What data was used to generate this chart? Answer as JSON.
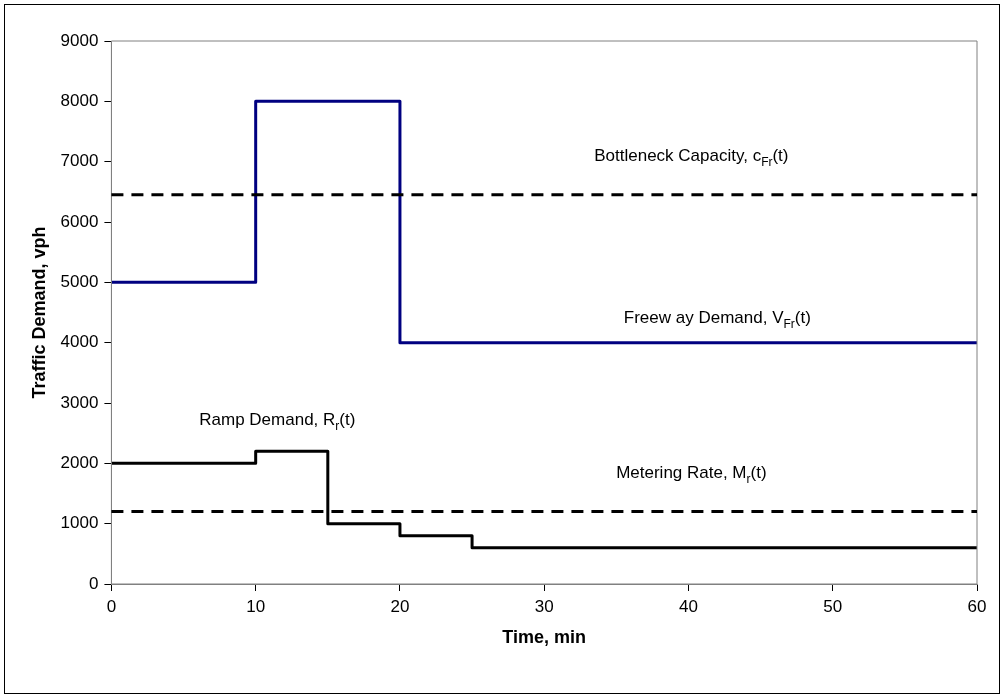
{
  "chart_data": {
    "type": "step",
    "xlabel": "Time, min",
    "ylabel": "Traffic Demand, vph",
    "xlim": [
      0,
      60
    ],
    "xticks": [
      0,
      10,
      20,
      30,
      40,
      50,
      60
    ],
    "ylim": [
      0,
      9000
    ],
    "yticks": [
      0,
      1000,
      2000,
      3000,
      4000,
      5000,
      6000,
      7000,
      8000,
      9000
    ],
    "grid": false,
    "legend": false,
    "marker": "none",
    "series": [
      {
        "name": "Freew ay Demand, V$_{Fr}$(t)",
        "color": "#000080",
        "x": [
          0,
          10,
          20,
          60
        ],
        "values": [
          5000,
          8000,
          4000,
          4000
        ]
      },
      {
        "name": "Ramp Demand, R$_{r}$(t)",
        "color": "#000000",
        "x": [
          0,
          10,
          15,
          20,
          25,
          60
        ],
        "values": [
          2000,
          2200,
          1000,
          800,
          600,
          600
        ]
      }
    ],
    "ref_lines": [
      {
        "axis": "y",
        "value": 6450,
        "label": "Bottleneck Capacity, c$_{Fr}$(t)",
        "color": "#000000",
        "line_style": "dashed"
      },
      {
        "axis": "y",
        "value": 1200,
        "label": "Metering Rate, M$_{r}$(t)",
        "color": "#000000",
        "line_style": "dashed"
      }
    ]
  }
}
